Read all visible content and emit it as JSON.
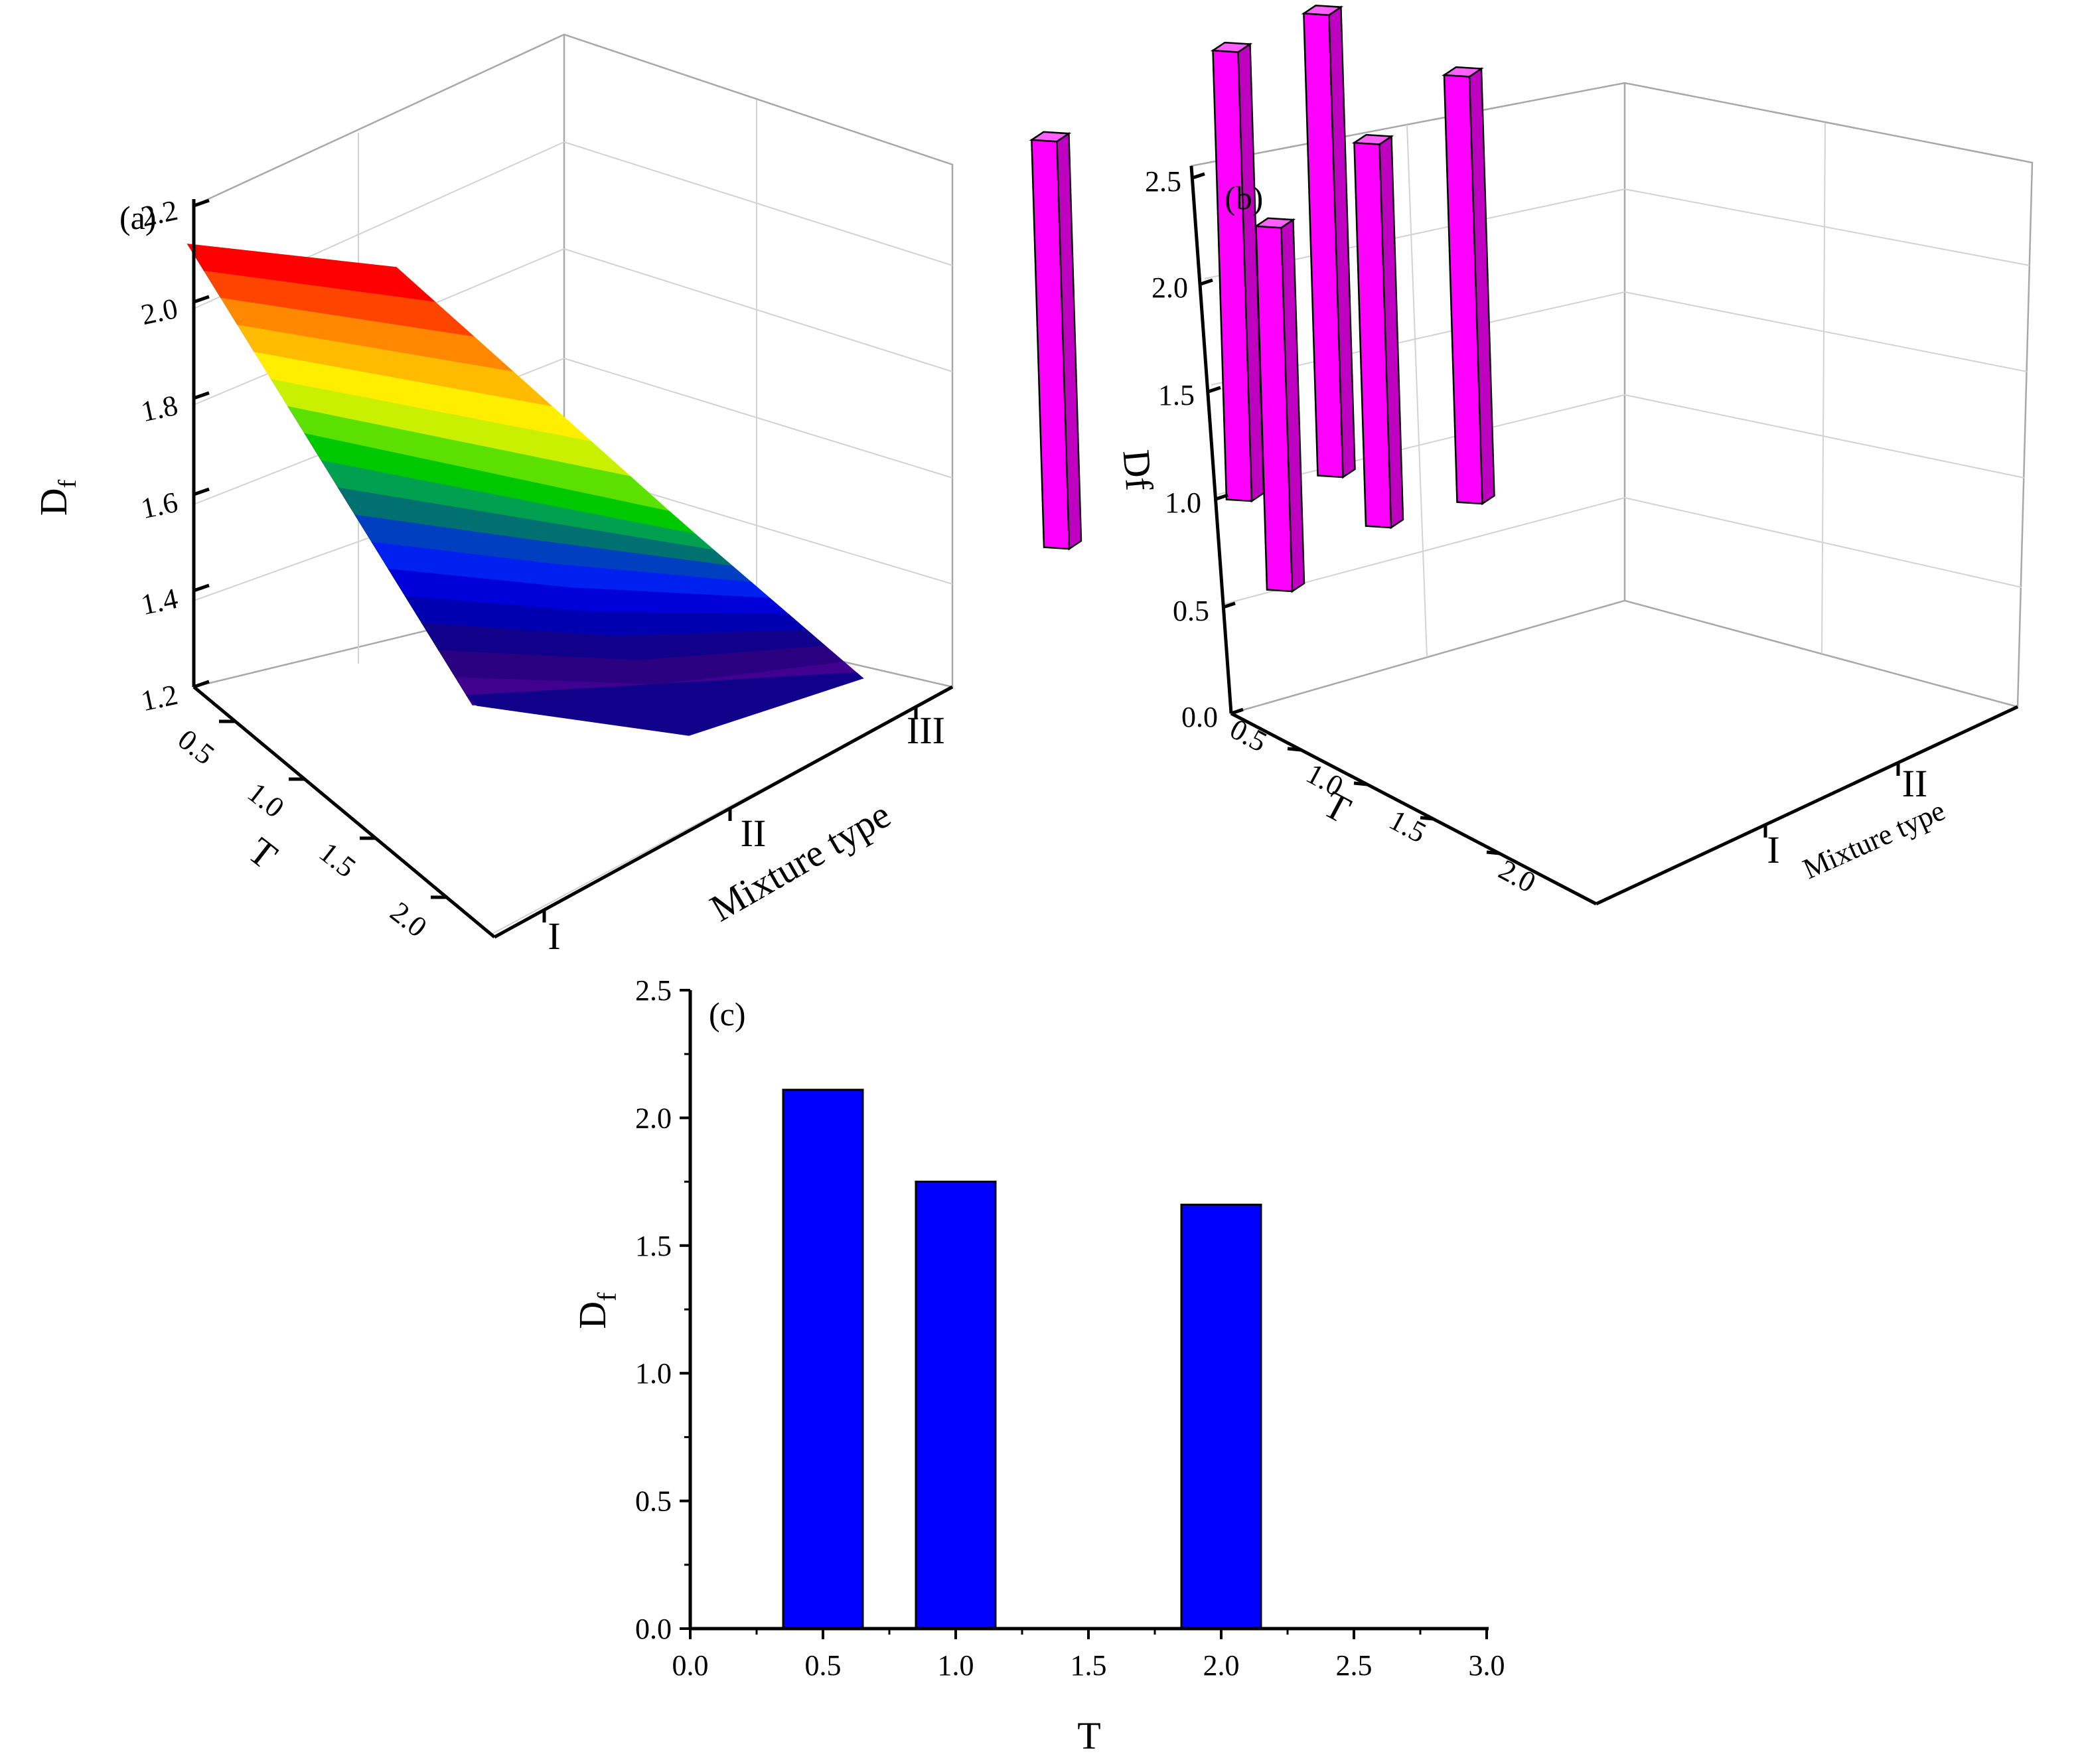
{
  "chart_data": [
    {
      "panel": "(a)",
      "type": "surface",
      "zlabel": "D",
      "zlabel_sub": "f",
      "ylabel": "T",
      "xlabel": "Mixture type",
      "z_ticks": [
        "1.2",
        "1.4",
        "1.6",
        "1.8",
        "2.0",
        "2.2"
      ],
      "t_ticks": [
        "0.5",
        "1.0",
        "1.5",
        "2.0"
      ],
      "x_ticks": [
        "I",
        "II",
        "III"
      ],
      "zlim": [
        1.2,
        2.2
      ],
      "surface": [
        {
          "mixture": "I",
          "T": 0.5,
          "Df": 2.11
        },
        {
          "mixture": "II",
          "T": 0.5,
          "Df": 2.05
        },
        {
          "mixture": "II",
          "T": 1.0,
          "Df": 1.75
        },
        {
          "mixture": "I",
          "T": 2.0,
          "Df": 1.22
        },
        {
          "mixture": "II",
          "T": 2.0,
          "Df": 1.25
        },
        {
          "mixture": "III",
          "T": 2.0,
          "Df": 1.22
        }
      ],
      "colors": [
        "#ff0000",
        "#ff4400",
        "#ff8800",
        "#ffbb00",
        "#ffee00",
        "#c8f000",
        "#5ce000",
        "#00c800",
        "#00a050",
        "#007070",
        "#0040c0",
        "#0020f0",
        "#0000d8",
        "#0000b0",
        "#10008a",
        "#2a0080",
        "#400090"
      ]
    },
    {
      "panel": "(b)",
      "type": "bar3d",
      "zlabel": "Df",
      "ylabel": "T",
      "xlabel": "Mixture type",
      "z_ticks": [
        "0.0",
        "0.5",
        "1.0",
        "1.5",
        "2.0",
        "2.5"
      ],
      "t_ticks": [
        "0.5",
        "1.0",
        "1.5",
        "2.0"
      ],
      "x_ticks": [
        "I",
        "II"
      ],
      "zlim": [
        0,
        2.5
      ],
      "bars": [
        {
          "mixture": "I",
          "T": 0.5,
          "Df": 2.11
        },
        {
          "mixture": "II",
          "T": 0.5,
          "Df": 1.95
        },
        {
          "mixture": "I",
          "T": 1.0,
          "Df": 2.05
        },
        {
          "mixture": "II",
          "T": 1.0,
          "Df": 1.75
        },
        {
          "mixture": "I",
          "T": 2.0,
          "Df": 1.86
        },
        {
          "mixture": "II",
          "T": 2.0,
          "Df": 1.66
        }
      ],
      "color": "#ff00ff"
    },
    {
      "panel": "(c)",
      "type": "bar",
      "xlabel": "T",
      "ylabel": "D",
      "ylabel_sub": "f",
      "x": [
        0.5,
        1.0,
        2.0
      ],
      "values": [
        2.11,
        1.75,
        1.66
      ],
      "bar_width": 0.3,
      "xlim": [
        0,
        3.0
      ],
      "ylim": [
        0,
        2.5
      ],
      "x_ticks": [
        "0.0",
        "0.5",
        "1.0",
        "1.5",
        "2.0",
        "2.5",
        "3.0"
      ],
      "y_ticks": [
        "0.0",
        "0.5",
        "1.0",
        "1.5",
        "2.0",
        "2.5"
      ],
      "color": "#0000ff"
    }
  ]
}
